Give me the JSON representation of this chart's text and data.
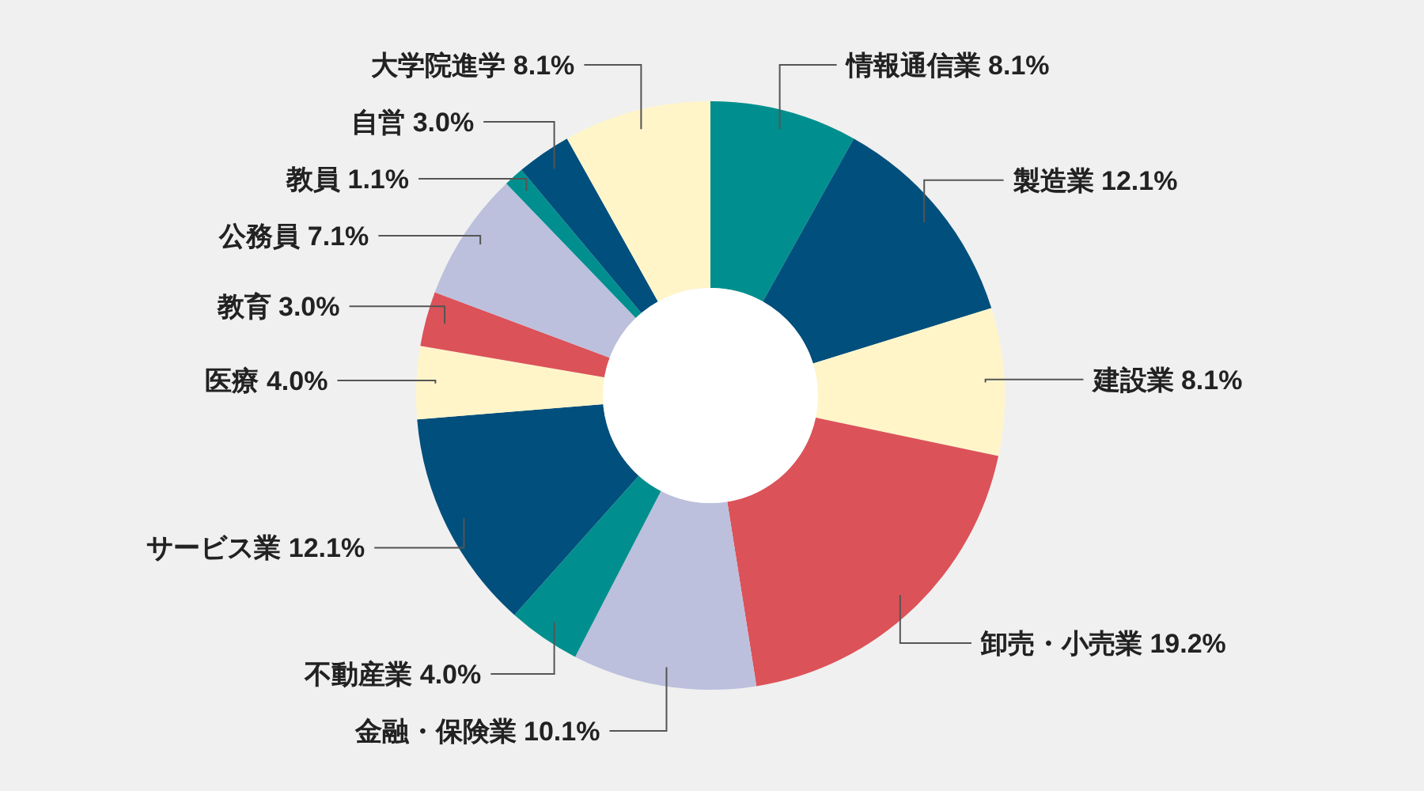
{
  "chart_data": {
    "type": "donut",
    "categories": [
      "情報通信業",
      "製造業",
      "建設業",
      "卸売・小売業",
      "金融・保険業",
      "不動産業",
      "サービス業",
      "医療",
      "教育",
      "公務員",
      "教員",
      "自営",
      "大学院進学"
    ],
    "values": [
      8.1,
      12.1,
      8.1,
      19.2,
      10.1,
      4.0,
      12.1,
      4.0,
      3.0,
      7.1,
      1.1,
      3.0,
      8.1
    ],
    "value_labels": [
      "8.1%",
      "12.1%",
      "8.1%",
      "19.2%",
      "10.1%",
      "4.0%",
      "12.1%",
      "4.0%",
      "3.0%",
      "7.1%",
      "1.1%",
      "3.0%",
      "8.1%"
    ],
    "colors": [
      "#008f8e",
      "#004f7c",
      "#fff5c9",
      "#dc5259",
      "#bcc0dd",
      "#008f8e",
      "#004f7c",
      "#fff5c9",
      "#dc5259",
      "#bcc0dd",
      "#008f8e",
      "#004f7c",
      "#fff5c9"
    ],
    "legend": false
  }
}
